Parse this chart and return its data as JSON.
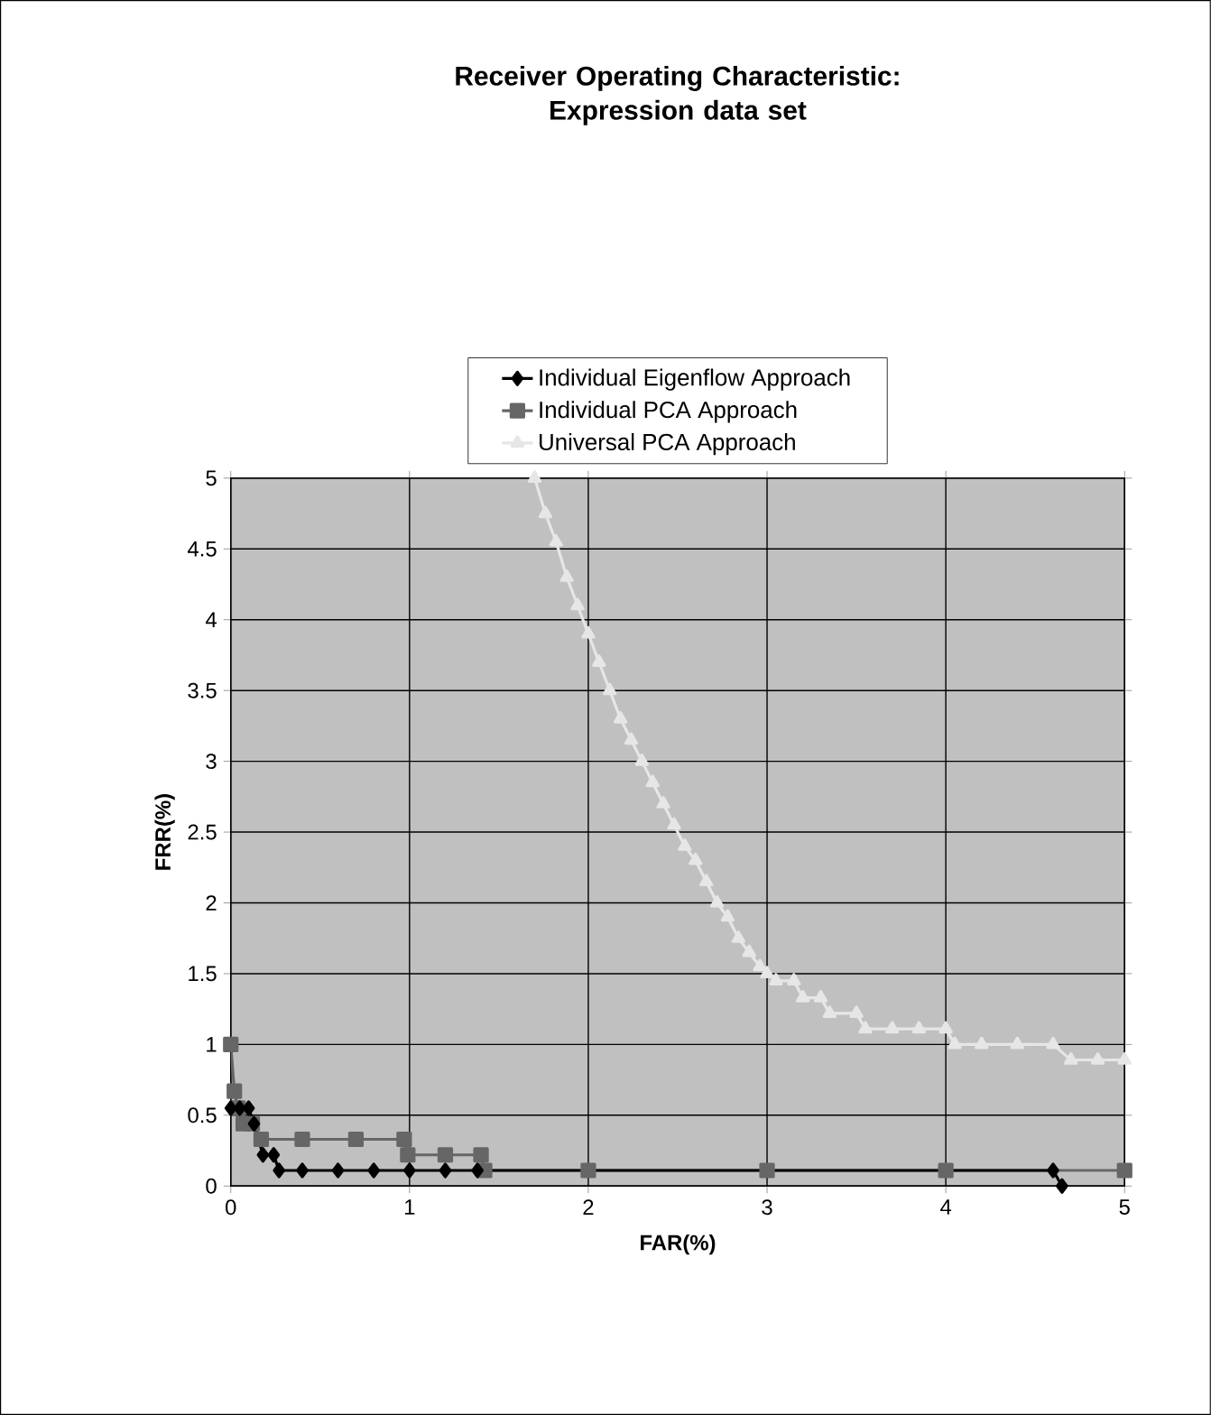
{
  "chart_data": {
    "type": "line",
    "title": "Receiver Operating Characteristic: Expression data set",
    "xlabel": "FAR(%)",
    "ylabel": "FRR(%)",
    "xlim": [
      0,
      5
    ],
    "ylim": [
      0,
      5
    ],
    "xticks": [
      0,
      1,
      2,
      3,
      4,
      5
    ],
    "yticks": [
      0,
      0.5,
      1,
      1.5,
      2,
      2.5,
      3,
      3.5,
      4,
      4.5,
      5
    ],
    "grid": true,
    "legend": "top",
    "series": [
      {
        "name": "Individual Eigenflow Approach",
        "color": "#000000",
        "marker": "diamond",
        "x": [
          0,
          0.05,
          0.1,
          0.13,
          0.18,
          0.24,
          0.27,
          0.4,
          0.6,
          0.8,
          1.0,
          1.2,
          1.38,
          4.6,
          4.65
        ],
        "values": [
          0.55,
          0.55,
          0.55,
          0.44,
          0.22,
          0.22,
          0.11,
          0.11,
          0.11,
          0.11,
          0.11,
          0.11,
          0.11,
          0.11,
          0
        ]
      },
      {
        "name": "Individual PCA Approach",
        "color": "#666666",
        "marker": "square",
        "x": [
          0,
          0.02,
          0.04,
          0.07,
          0.12,
          0.17,
          0.4,
          0.7,
          0.97,
          0.99,
          1.2,
          1.4,
          1.42,
          2,
          3,
          4,
          5
        ],
        "values": [
          1,
          0.67,
          0.55,
          0.44,
          0.44,
          0.33,
          0.33,
          0.33,
          0.33,
          0.22,
          0.22,
          0.22,
          0.11,
          0.11,
          0.11,
          0.11,
          0.11
        ]
      },
      {
        "name": "Universal PCA Approach",
        "color": "#e6e6e6",
        "marker": "triangle",
        "x": [
          1.7,
          1.76,
          1.82,
          1.88,
          1.94,
          2.0,
          2.06,
          2.12,
          2.18,
          2.24,
          2.3,
          2.36,
          2.42,
          2.48,
          2.54,
          2.6,
          2.66,
          2.72,
          2.78,
          2.84,
          2.9,
          2.96,
          3.0,
          3.05,
          3.15,
          3.2,
          3.3,
          3.35,
          3.5,
          3.55,
          3.7,
          3.85,
          4.0,
          4.05,
          4.2,
          4.4,
          4.6,
          4.7,
          4.85,
          5.0
        ],
        "values": [
          5,
          4.75,
          4.55,
          4.3,
          4.1,
          3.9,
          3.7,
          3.5,
          3.3,
          3.15,
          3.0,
          2.85,
          2.7,
          2.55,
          2.4,
          2.3,
          2.15,
          2.0,
          1.9,
          1.75,
          1.65,
          1.55,
          1.5,
          1.45,
          1.45,
          1.33,
          1.33,
          1.22,
          1.22,
          1.11,
          1.11,
          1.11,
          1.11,
          1.0,
          1.0,
          1.0,
          1.0,
          0.89,
          0.89,
          0.89
        ]
      }
    ]
  }
}
